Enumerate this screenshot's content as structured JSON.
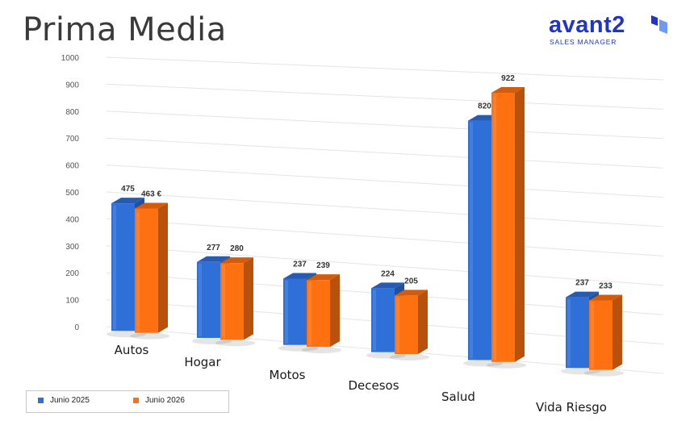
{
  "title": "Prima Media",
  "logo": {
    "word": "avant2",
    "subtitle": "SALES MANAGER",
    "color": "#1f35c9"
  },
  "chart_data": {
    "type": "bar",
    "categories": [
      "Autos",
      "Hogar",
      "Motos",
      "Decesos",
      "Salud",
      "Vida Riesgo"
    ],
    "series": [
      {
        "name": "Junio 2025",
        "values": [
          475,
          277,
          237,
          224,
          820,
          237
        ],
        "labels": [
          "475",
          "277",
          "237",
          "224",
          "820",
          "237"
        ],
        "color": "#2e6fd8"
      },
      {
        "name": "Junio 2026",
        "values": [
          463,
          280,
          239,
          205,
          922,
          233
        ],
        "labels": [
          "463 €",
          "280",
          "239",
          "205",
          "922",
          "233"
        ],
        "color": "#ff7010"
      }
    ],
    "yticks": [
      "0",
      "100",
      "200",
      "300",
      "400",
      "500",
      "600",
      "700",
      "800",
      "900",
      "1000"
    ],
    "ylim": [
      0,
      1000
    ],
    "grid": true,
    "legend_position": "bottom-left",
    "style": "3d-perspective"
  }
}
